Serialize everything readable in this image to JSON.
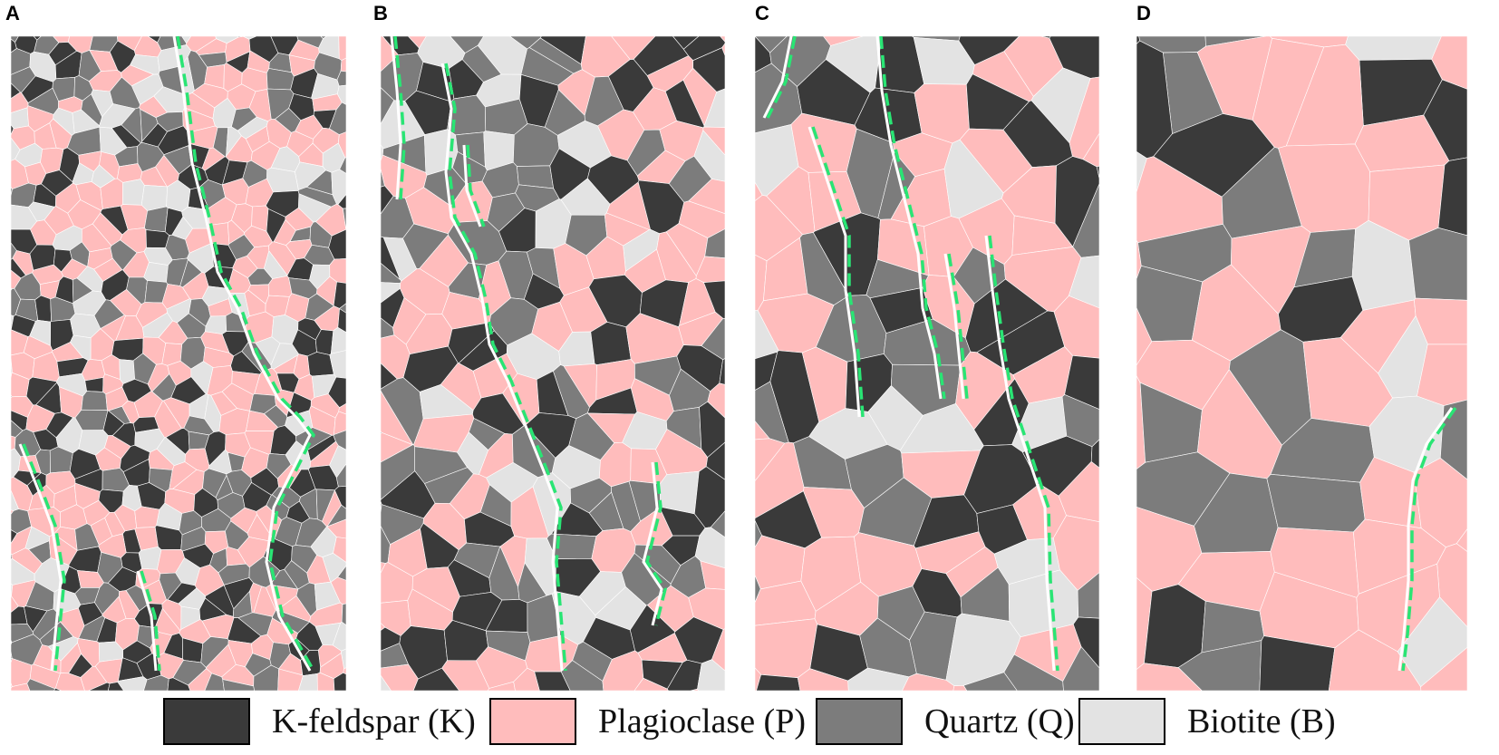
{
  "panels": [
    {
      "letter": "A",
      "seed": 11,
      "cell": 24
    },
    {
      "letter": "B",
      "seed": 29,
      "cell": 40
    },
    {
      "letter": "C",
      "seed": 47,
      "cell": 58
    },
    {
      "letter": "D",
      "seed": 83,
      "cell": 80
    }
  ],
  "legend": [
    {
      "label": "K-feldspar (K)",
      "color": "#3a3a3a"
    },
    {
      "label": "Plagioclase (P)",
      "color": "#ffbcbc"
    },
    {
      "label": "Quartz (Q)",
      "color": "#7c7c7c"
    },
    {
      "label": "Biotite (B)",
      "color": "#e3e3e3"
    }
  ],
  "colors": {
    "fracture": "#29e574",
    "crack": "#ffffff",
    "grain_boundary": "#ffffff"
  }
}
